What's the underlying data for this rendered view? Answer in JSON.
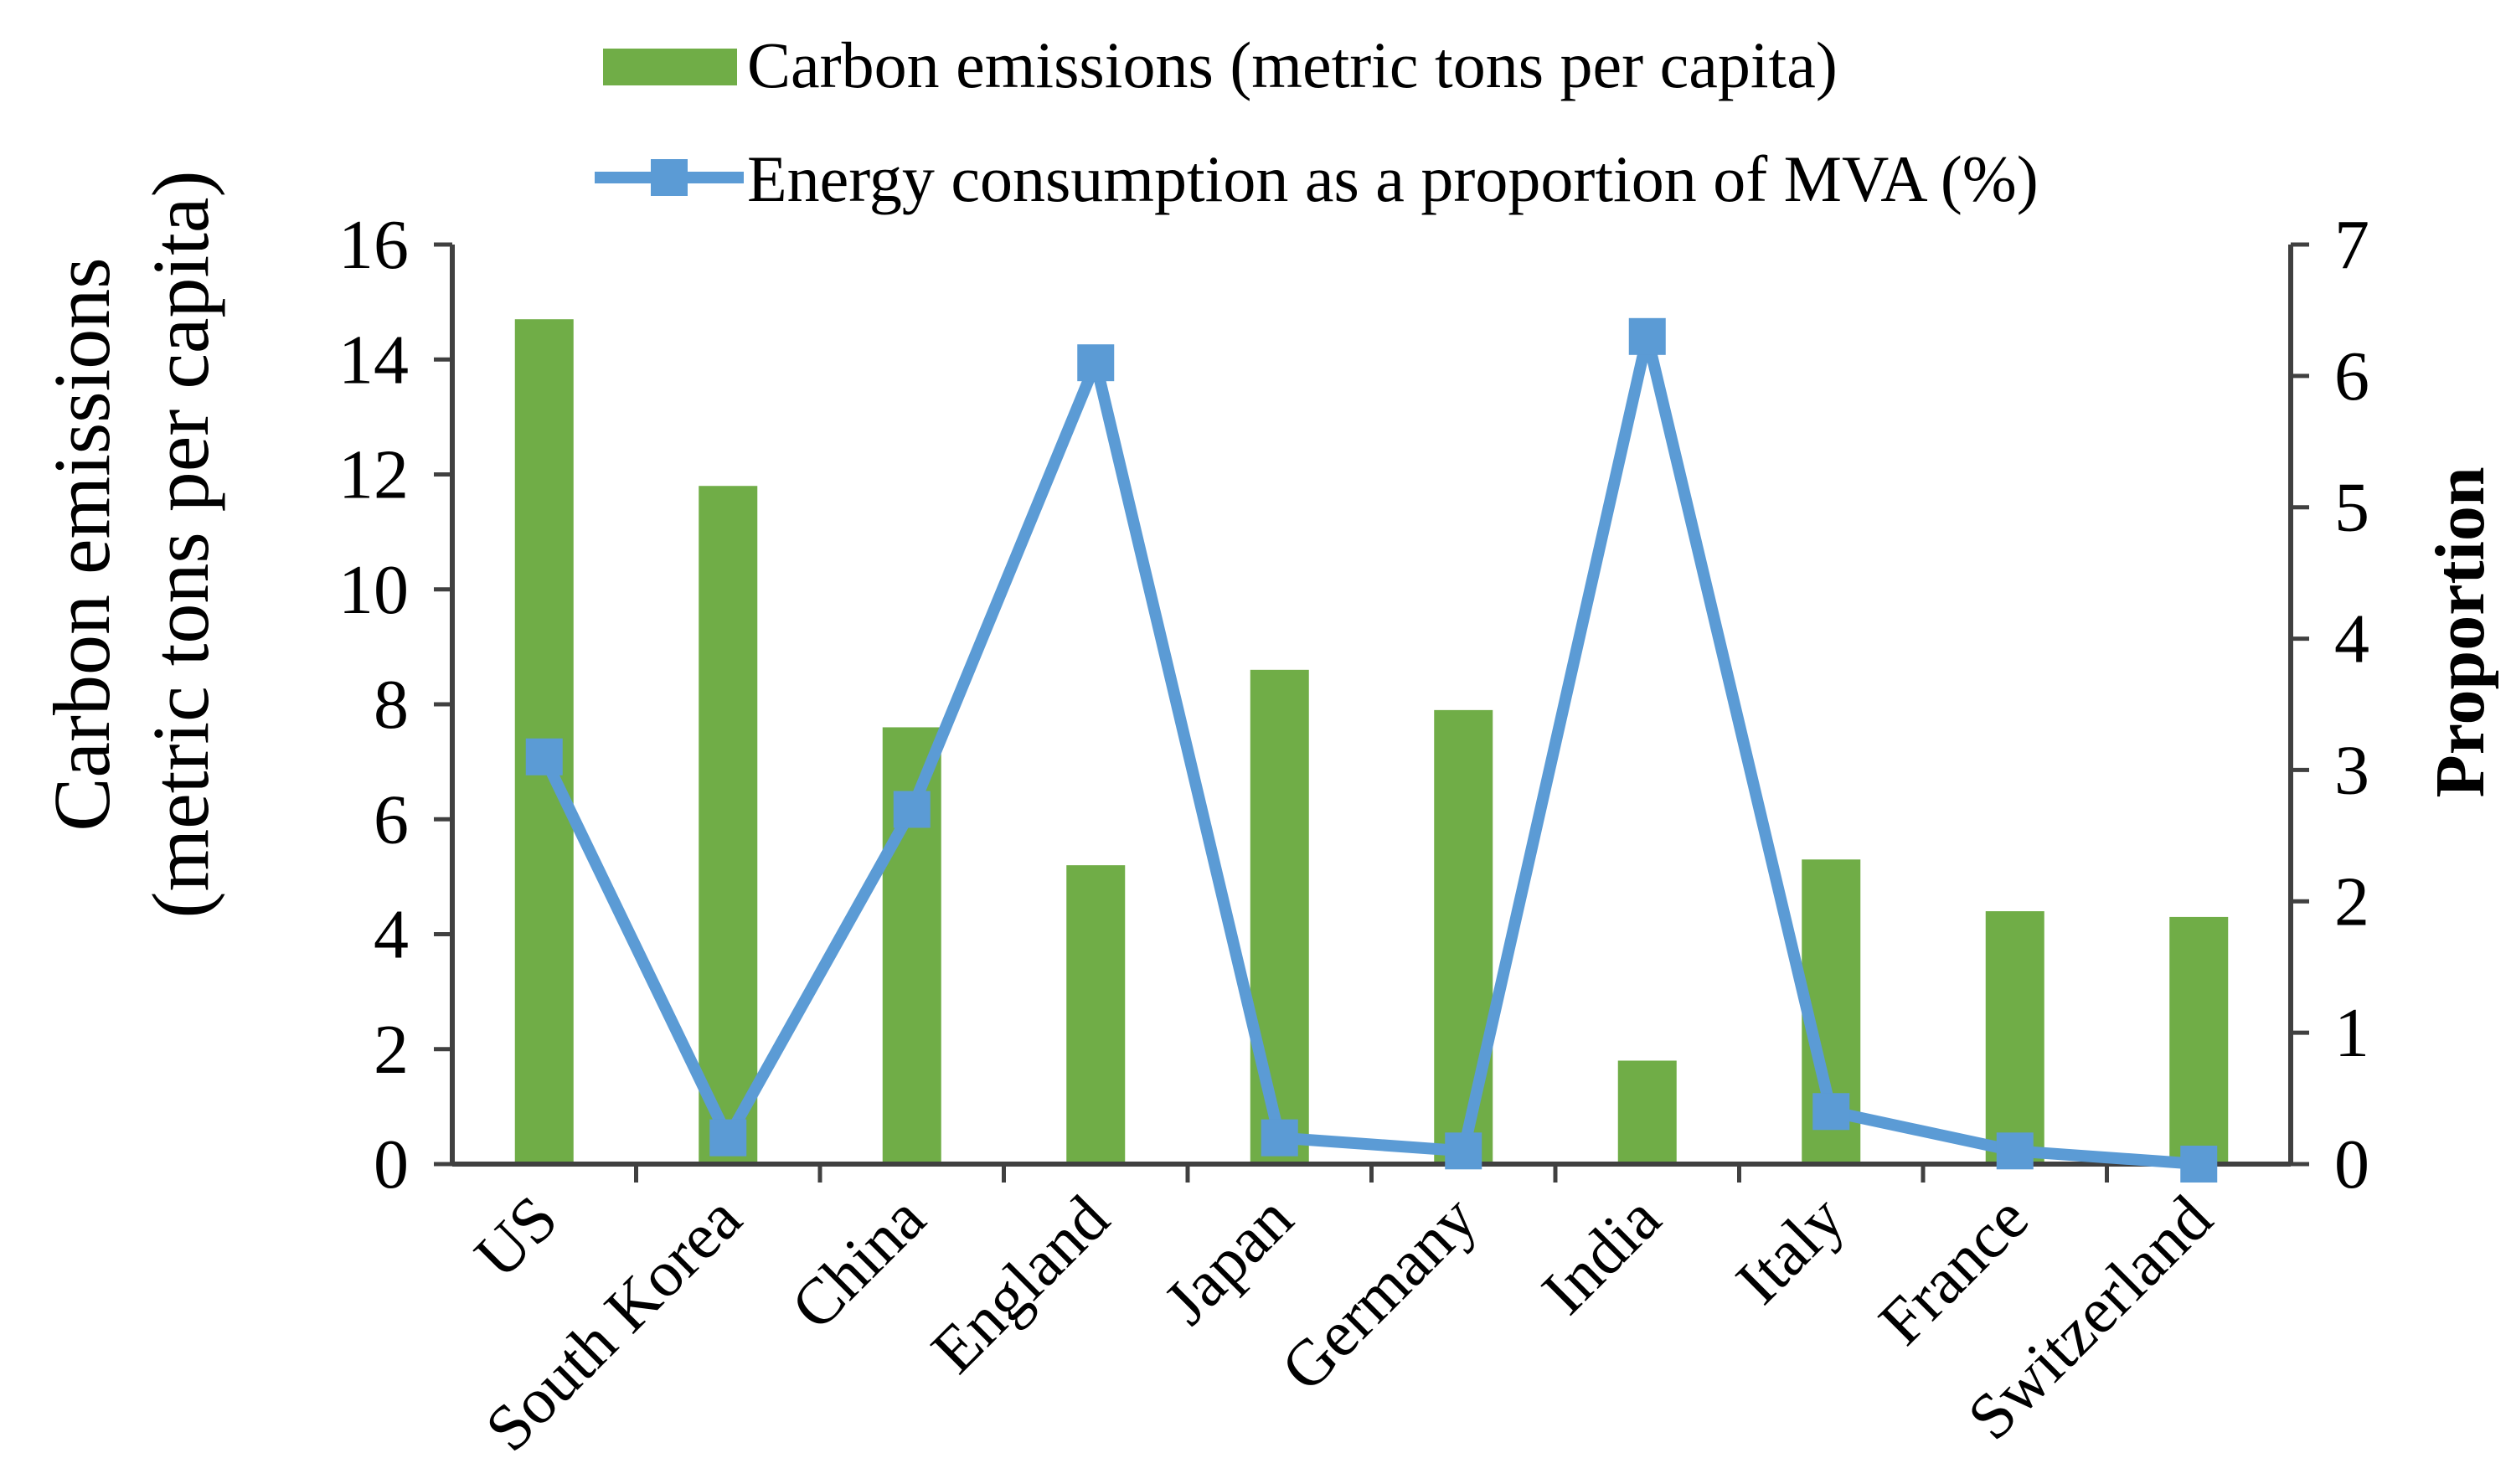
{
  "chart_data": {
    "type": "bar+line",
    "categories": [
      "US",
      "South Korea",
      "China",
      "England",
      "Japan",
      "Germany",
      "India",
      "Italy",
      "France",
      "Switzerland"
    ],
    "series": [
      {
        "name": "Carbon emissions (metric tons per capita)",
        "kind": "bar",
        "axis": "left",
        "color": "#70AD47",
        "values": [
          14.7,
          11.8,
          7.6,
          5.2,
          8.6,
          7.9,
          1.8,
          5.3,
          4.4,
          4.3
        ]
      },
      {
        "name": "Energy consumption as a proportion of MVA (%)",
        "kind": "line",
        "axis": "right",
        "color": "#5B9BD5",
        "values": [
          3.1,
          0.2,
          2.7,
          6.1,
          0.2,
          0.1,
          6.3,
          0.4,
          0.1,
          0.0
        ]
      }
    ],
    "y_left": {
      "label_line1": "Carbon emissions",
      "label_line2": "(metric tons per capita)",
      "ylim": [
        0,
        16
      ],
      "ticks": [
        0,
        2,
        4,
        6,
        8,
        10,
        12,
        14,
        16
      ]
    },
    "y_right": {
      "label": "Proportion",
      "ylim": [
        0,
        7
      ],
      "ticks": [
        0,
        1,
        2,
        3,
        4,
        5,
        6,
        7
      ]
    },
    "legend": {
      "position": "top-center",
      "bar_label": "Carbon emissions (metric tons per capita)",
      "line_label": "Energy consumption as a proportion of MVA (%)"
    },
    "grid": false
  }
}
